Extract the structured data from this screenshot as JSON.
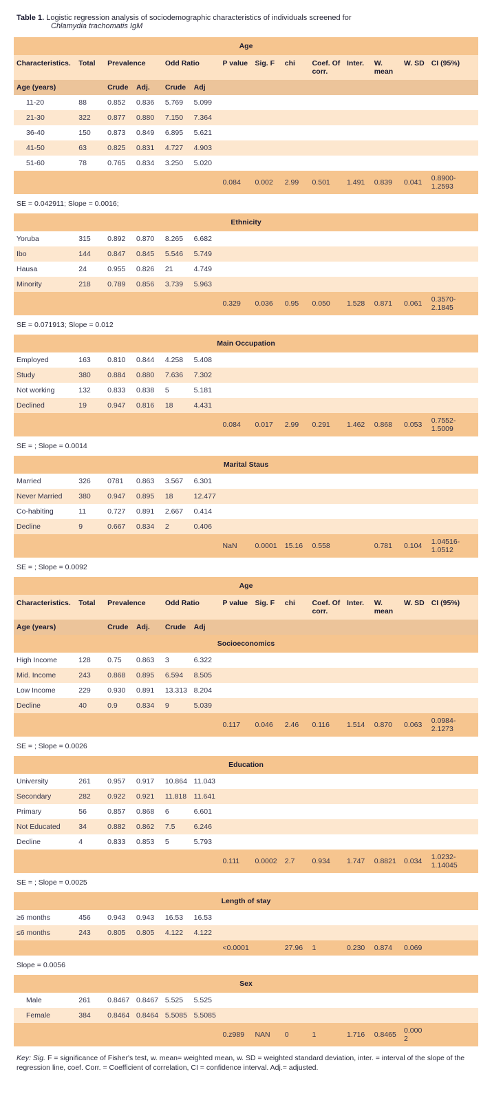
{
  "title": {
    "label": "Table 1.",
    "text": "Logistic regression analysis of sociodemographic characteristics of individuals screened for",
    "sub_italic": "Chlamydia trachomatis",
    "sub_plain": " IgM"
  },
  "headers": {
    "char": "Characteristics.",
    "total": "Total",
    "prevalence": "Prevalence",
    "odd_ratio": "Odd Ratio",
    "pvalue": "P value",
    "sigf": "Sig. F",
    "chi": "chi",
    "coef": "Coef. Of corr.",
    "inter": "Inter.",
    "wmean": "W. mean",
    "wsd": "W. SD",
    "ci": "CI (95%)",
    "crude": "Crude",
    "adj": "Adj.",
    "adj2": "Adj",
    "age_years": "Age (years)"
  },
  "colors": {
    "section": "#f6c58f",
    "header": "#fde2c4",
    "subheader": "#ecc49a",
    "zebra": "#fde7cf",
    "white": "#ffffff",
    "stats": "#f6c58f"
  },
  "sections": [
    {
      "title": "Age",
      "show_full_header": true,
      "show_age_header": true,
      "rows": [
        {
          "label": "11-20",
          "indent": true,
          "total": "88",
          "pc": "0.852",
          "pa": "0.836",
          "oc": "5.769",
          "oa": "5.099"
        },
        {
          "label": "21-30",
          "indent": true,
          "total": "322",
          "pc": "0.877",
          "pa": "0.880",
          "oc": "7.150",
          "oa": "7.364"
        },
        {
          "label": "36-40",
          "indent": true,
          "total": "150",
          "pc": "0.873",
          "pa": "0.849",
          "oc": "6.895",
          "oa": "5.621"
        },
        {
          "label": "41-50",
          "indent": true,
          "total": "63",
          "pc": "0.825",
          "pa": "0.831",
          "oc": "4.727",
          "oa": "4.903"
        },
        {
          "label": "51-60",
          "indent": true,
          "total": "78",
          "pc": "0.765",
          "pa": "0.834",
          "oc": "3.250",
          "oa": "5.020"
        }
      ],
      "stats": {
        "pvalue": "0.084",
        "sigf": "0.002",
        "chi": "2.99",
        "coef": "0.501",
        "inter": "1.491",
        "wmean": "0.839",
        "wsd": "0.041",
        "ci": "0.8900-1.2593"
      },
      "note": "SE = 0.042911; Slope = 0.0016;"
    },
    {
      "title": "Ethnicity",
      "rows": [
        {
          "label": "Yoruba",
          "total": "315",
          "pc": "0.892",
          "pa": "0.870",
          "oc": "8.265",
          "oa": "6.682"
        },
        {
          "label": "Ibo",
          "total": "144",
          "pc": "0.847",
          "pa": "0.845",
          "oc": "5.546",
          "oa": "5.749"
        },
        {
          "label": "Hausa",
          "total": "24",
          "pc": "0.955",
          "pa": "0.826",
          "oc": "21",
          "oa": "4.749"
        },
        {
          "label": "Minority",
          "total": "218",
          "pc": "0.789",
          "pa": "0.856",
          "oc": "3.739",
          "oa": "5.963"
        }
      ],
      "stats": {
        "pvalue": "0.329",
        "sigf": "0.036",
        "chi": "0.95",
        "coef": "0.050",
        "inter": "1.528",
        "wmean": "0.871",
        "wsd": "0.061",
        "ci": "0.3570-2.1845"
      },
      "note": "SE = 0.071913; Slope = 0.012"
    },
    {
      "title": "Main Occupation",
      "rows": [
        {
          "label": "Employed",
          "total": "163",
          "pc": "0.810",
          "pa": "0.844",
          "oc": "4.258",
          "oa": "5.408"
        },
        {
          "label": "Study",
          "total": "380",
          "pc": "0.884",
          "pa": "0.880",
          "oc": "7.636",
          "oa": "7.302"
        },
        {
          "label": "Not working",
          "total": "132",
          "pc": "0.833",
          "pa": "0.838",
          "oc": "5",
          "oa": "5.181"
        },
        {
          "label": "Declined",
          "total": "19",
          "pc": "0.947",
          "pa": "0.816",
          "oc": "18",
          "oa": "4.431"
        }
      ],
      "stats": {
        "pvalue": "0.084",
        "sigf": "0.017",
        "chi": "2.99",
        "coef": "0.291",
        "inter": "1.462",
        "wmean": "0.868",
        "wsd": "0.053",
        "ci": "0.7552-1.5009"
      },
      "note": "SE = ; Slope = 0.0014"
    },
    {
      "title": "Marital Staus",
      "rows": [
        {
          "label": "Married",
          "total": "326",
          "pc": "0781",
          "pa": "0.863",
          "oc": "3.567",
          "oa": "6.301"
        },
        {
          "label": "Never Married",
          "total": "380",
          "pc": "0.947",
          "pa": "0.895",
          "oc": "18",
          "oa": "12.477"
        },
        {
          "label": "Co-habiting",
          "total": "11",
          "pc": "0.727",
          "pa": "0.891",
          "oc": "2.667",
          "oa": "0.414"
        },
        {
          "label": "Decline",
          "total": "9",
          "pc": "0.667",
          "pa": "0.834",
          "oc": "2",
          "oa": "0.406"
        }
      ],
      "stats": {
        "pvalue": "NaN",
        "sigf": "0.0001",
        "chi": "15.16",
        "coef": "0.558",
        "inter": "",
        "wmean": "0.781",
        "wsd": "0.104",
        "ci": "1.04516-1.0512"
      },
      "note": "SE = ; Slope = 0.0092"
    },
    {
      "title": "Age",
      "show_full_header": true,
      "show_age_header": true,
      "second_section_title": "Socioeconomics",
      "rows": [
        {
          "label": "High Income",
          "total": "128",
          "pc": "0.75",
          "pa": "0.863",
          "oc": "3",
          "oa": "6.322"
        },
        {
          "label": "Mid. Income",
          "total": "243",
          "pc": "0.868",
          "pa": "0.895",
          "oc": "6.594",
          "oa": "8.505"
        },
        {
          "label": "Low Income",
          "total": "229",
          "pc": "0.930",
          "pa": "0.891",
          "oc": "13.313",
          "oa": "8.204"
        },
        {
          "label": "Decline",
          "total": "40",
          "pc": "0.9",
          "pa": "0.834",
          "oc": "9",
          "oa": "5.039"
        }
      ],
      "stats": {
        "pvalue": "0.117",
        "sigf": "0.046",
        "chi": "2.46",
        "coef": "0.116",
        "inter": "1.514",
        "wmean": "0.870",
        "wsd": "0.063",
        "ci": "0.0984-2.1273"
      },
      "note": "SE = ; Slope = 0.0026"
    },
    {
      "title": "Education",
      "rows": [
        {
          "label": "University",
          "total": "261",
          "pc": "0.957",
          "pa": "0.917",
          "oc": "10.864",
          "oa": "11.043"
        },
        {
          "label": "Secondary",
          "total": "282",
          "pc": "0.922",
          "pa": "0.921",
          "oc": "11.818",
          "oa": "11.641"
        },
        {
          "label": "Primary",
          "total": "56",
          "pc": "0.857",
          "pa": "0.868",
          "oc": "6",
          "oa": "6.601"
        },
        {
          "label": "Not Educated",
          "total": "34",
          "pc": "0.882",
          "pa": "0.862",
          "oc": "7.5",
          "oa": "6.246"
        },
        {
          "label": "Decline",
          "total": "4",
          "pc": "0.833",
          "pa": "0.853",
          "oc": "5",
          "oa": "5.793"
        }
      ],
      "stats": {
        "pvalue": "0.111",
        "sigf": "0.0002",
        "chi": "2.7",
        "coef": "0.934",
        "inter": "1.747",
        "wmean": "0.8821",
        "wsd": "0.034",
        "ci": "1.0232-1.14045"
      },
      "note": "SE = ; Slope = 0.0025"
    },
    {
      "title": "Length of stay",
      "rows": [
        {
          "label": "≥6 months",
          "total": "456",
          "pc": "0.943",
          "pa": "0.943",
          "oc": "16.53",
          "oa": "16.53"
        },
        {
          "label": "≤6 months",
          "total": "243",
          "pc": "0.805",
          "pa": "0.805",
          "oc": "4.122",
          "oa": "4.122"
        }
      ],
      "stats": {
        "pvalue": "<0.0001",
        "sigf": "",
        "chi": "27.96",
        "coef": "1",
        "inter": "0.230",
        "wmean": "0.874",
        "wsd": "0.069",
        "ci": ""
      },
      "note": "Slope = 0.0056"
    },
    {
      "title": "Sex",
      "rows": [
        {
          "label": "Male",
          "indent": true,
          "total": "261",
          "pc": "0.8467",
          "pa": "0.8467",
          "oc": "5.525",
          "oa": "5.525"
        },
        {
          "label": "Female",
          "indent": true,
          "total": "384",
          "pc": "0.8464",
          "pa": "0.8464",
          "oc": "5.5085",
          "oa": "5.5085"
        }
      ],
      "stats": {
        "pvalue": "0.z989",
        "sigf": "NAN",
        "chi": "0",
        "coef": "1",
        "inter": "1.716",
        "wmean": "0.8465",
        "wsd": "0.0002",
        "ci": ""
      }
    }
  ],
  "key_text": "Key: Sig. F = significance of Fisher's test, w. mean= weighted mean, w. SD = weighted standard deviation, inter. = interval of the slope of the regression line, coef. Corr. = Coefficient of correlation, CI = confidence interval. Adj.= adjusted."
}
